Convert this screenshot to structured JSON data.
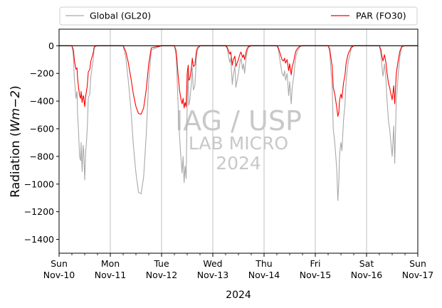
{
  "chart_data": {
    "type": "line",
    "title": "",
    "ylabel_prefix": "Radiation (",
    "ylabel_math": "Wm−2",
    "ylabel_suffix": ")",
    "xlabel": "2024",
    "xlim": [
      0,
      7
    ],
    "ylim": [
      -1500,
      120
    ],
    "yticks": [
      0,
      -200,
      -400,
      -600,
      -800,
      -1000,
      -1200,
      -1400
    ],
    "ytick_labels": [
      "0",
      "−200",
      "−400",
      "−600",
      "−800",
      "−1000",
      "−1200",
      "−1400"
    ],
    "xticks": [
      0,
      1,
      2,
      3,
      4,
      5,
      6,
      7
    ],
    "xtick_labels": [
      [
        "Sun",
        "Nov-10"
      ],
      [
        "Mon",
        "Nov-11"
      ],
      [
        "Tue",
        "Nov-12"
      ],
      [
        "Wed",
        "Nov-13"
      ],
      [
        "Thu",
        "Nov-14"
      ],
      [
        "Fri",
        "Nov-15"
      ],
      [
        "Sat",
        "Nov-16"
      ],
      [
        "Sun",
        "Nov-17"
      ]
    ],
    "vertical_grid": true,
    "zero_line": true,
    "legend_placement": "above the plot, full width",
    "watermark": [
      "IAG / USP",
      "LAB MICRO",
      "2024"
    ],
    "series": [
      {
        "name": "Global (GL20)",
        "color": "#a9a9a9",
        "x": [
          0.0,
          0.25,
          0.28,
          0.3,
          0.33,
          0.35,
          0.36,
          0.38,
          0.4,
          0.42,
          0.43,
          0.45,
          0.47,
          0.48,
          0.5,
          0.52,
          0.53,
          0.55,
          0.57,
          0.6,
          0.62,
          0.64,
          0.67,
          0.68,
          0.7,
          0.75,
          1.25,
          1.3,
          1.35,
          1.4,
          1.45,
          1.5,
          1.55,
          1.6,
          1.65,
          1.7,
          1.75,
          1.8,
          2.0,
          2.25,
          2.28,
          2.3,
          2.32,
          2.35,
          2.38,
          2.4,
          2.42,
          2.44,
          2.46,
          2.48,
          2.5,
          2.52,
          2.53,
          2.55,
          2.58,
          2.6,
          2.62,
          2.65,
          2.68,
          2.7,
          2.75,
          3.25,
          3.28,
          3.3,
          3.33,
          3.35,
          3.38,
          3.4,
          3.43,
          3.45,
          3.47,
          3.5,
          3.53,
          3.55,
          3.58,
          3.6,
          3.62,
          3.65,
          3.67,
          3.7,
          3.75,
          4.25,
          4.28,
          4.3,
          4.33,
          4.35,
          4.38,
          4.4,
          4.42,
          4.45,
          4.48,
          4.5,
          4.53,
          4.55,
          4.58,
          4.6,
          4.62,
          4.65,
          4.68,
          4.7,
          4.75,
          5.25,
          5.28,
          5.3,
          5.33,
          5.35,
          5.38,
          5.4,
          5.42,
          5.44,
          5.46,
          5.47,
          5.48,
          5.5,
          5.52,
          5.55,
          5.58,
          5.6,
          5.63,
          5.65,
          5.68,
          5.7,
          5.75,
          6.25,
          6.28,
          6.3,
          6.32,
          6.35,
          6.38,
          6.4,
          6.43,
          6.45,
          6.47,
          6.5,
          6.53,
          6.55,
          6.58,
          6.6,
          6.62,
          6.65,
          6.68,
          6.7,
          6.75,
          7.0
        ],
        "values": [
          0,
          0,
          -80,
          -250,
          -380,
          -330,
          -480,
          -620,
          -800,
          -830,
          -700,
          -910,
          -720,
          -760,
          -970,
          -760,
          -720,
          -600,
          -380,
          -350,
          -220,
          -170,
          -90,
          -30,
          -5,
          0,
          0,
          -80,
          -250,
          -450,
          -720,
          -920,
          -1060,
          -1070,
          -950,
          -650,
          -250,
          -30,
          0,
          0,
          -60,
          -200,
          -400,
          -650,
          -820,
          -920,
          -800,
          -990,
          -870,
          -960,
          -400,
          -190,
          -430,
          -400,
          -280,
          -160,
          -320,
          -290,
          -80,
          -30,
          0,
          0,
          -20,
          -60,
          -120,
          -90,
          -280,
          -210,
          -150,
          -300,
          -260,
          -200,
          -120,
          -90,
          -170,
          -130,
          -200,
          -90,
          -40,
          -10,
          0,
          0,
          -30,
          -80,
          -150,
          -200,
          -220,
          -180,
          -250,
          -200,
          -360,
          -260,
          -420,
          -300,
          -220,
          -140,
          -80,
          -40,
          -20,
          -5,
          0,
          0,
          -40,
          -150,
          -300,
          -600,
          -700,
          -800,
          -900,
          -1120,
          -980,
          -830,
          -760,
          -700,
          -760,
          -540,
          -420,
          -260,
          -150,
          -100,
          -60,
          -20,
          0,
          0,
          -60,
          -150,
          -220,
          -130,
          -250,
          -400,
          -550,
          -600,
          -680,
          -800,
          -580,
          -850,
          -400,
          -300,
          -200,
          -80,
          -20,
          -5,
          0,
          0
        ]
      },
      {
        "name": "PAR (FO30)",
        "color": "#ff0000",
        "x": [
          0.0,
          0.25,
          0.28,
          0.3,
          0.33,
          0.35,
          0.36,
          0.38,
          0.4,
          0.42,
          0.43,
          0.45,
          0.47,
          0.48,
          0.5,
          0.52,
          0.53,
          0.55,
          0.57,
          0.6,
          0.62,
          0.64,
          0.67,
          0.68,
          0.7,
          0.75,
          1.25,
          1.3,
          1.35,
          1.4,
          1.45,
          1.5,
          1.55,
          1.6,
          1.65,
          1.7,
          1.75,
          1.8,
          2.0,
          2.25,
          2.28,
          2.3,
          2.32,
          2.35,
          2.38,
          2.4,
          2.42,
          2.44,
          2.46,
          2.48,
          2.5,
          2.52,
          2.53,
          2.55,
          2.58,
          2.6,
          2.62,
          2.65,
          2.68,
          2.7,
          2.75,
          3.25,
          3.28,
          3.3,
          3.33,
          3.35,
          3.38,
          3.4,
          3.43,
          3.45,
          3.47,
          3.5,
          3.53,
          3.55,
          3.58,
          3.6,
          3.62,
          3.65,
          3.67,
          3.7,
          3.75,
          4.25,
          4.28,
          4.3,
          4.33,
          4.35,
          4.38,
          4.4,
          4.42,
          4.45,
          4.48,
          4.5,
          4.53,
          4.55,
          4.58,
          4.6,
          4.62,
          4.65,
          4.68,
          4.7,
          4.75,
          5.25,
          5.28,
          5.3,
          5.33,
          5.35,
          5.38,
          5.4,
          5.42,
          5.44,
          5.46,
          5.47,
          5.48,
          5.5,
          5.52,
          5.55,
          5.58,
          5.6,
          5.63,
          5.65,
          5.68,
          5.7,
          5.75,
          6.25,
          6.28,
          6.3,
          6.32,
          6.35,
          6.38,
          6.4,
          6.43,
          6.45,
          6.47,
          6.5,
          6.53,
          6.55,
          6.58,
          6.6,
          6.62,
          6.65,
          6.68,
          6.7,
          6.75,
          7.0
        ],
        "values": [
          0,
          0,
          -30,
          -110,
          -170,
          -160,
          -230,
          -300,
          -360,
          -380,
          -330,
          -410,
          -360,
          -370,
          -440,
          -360,
          -340,
          -290,
          -190,
          -170,
          -110,
          -85,
          -45,
          -15,
          -3,
          0,
          0,
          -40,
          -120,
          -230,
          -350,
          -440,
          -490,
          -495,
          -450,
          -320,
          -130,
          -15,
          0,
          0,
          -30,
          -100,
          -200,
          -320,
          -390,
          -420,
          -380,
          -450,
          -410,
          -440,
          -200,
          -140,
          -250,
          -240,
          -170,
          -90,
          -150,
          -140,
          -40,
          -15,
          0,
          0,
          -10,
          -30,
          -60,
          -45,
          -140,
          -100,
          -75,
          -150,
          -130,
          -100,
          -60,
          -45,
          -85,
          -65,
          -100,
          -45,
          -20,
          -5,
          0,
          0,
          -15,
          -40,
          -75,
          -100,
          -110,
          -90,
          -125,
          -100,
          -180,
          -130,
          -210,
          -150,
          -110,
          -70,
          -40,
          -20,
          -10,
          -3,
          0,
          0,
          -20,
          -75,
          -150,
          -300,
          -350,
          -400,
          -450,
          -510,
          -480,
          -410,
          -380,
          -350,
          -380,
          -270,
          -210,
          -130,
          -75,
          -50,
          -30,
          -10,
          0,
          0,
          -30,
          -75,
          -110,
          -65,
          -125,
          -200,
          -275,
          -300,
          -340,
          -390,
          -290,
          -420,
          -200,
          -150,
          -100,
          -40,
          -10,
          -3,
          0,
          0
        ]
      }
    ]
  }
}
